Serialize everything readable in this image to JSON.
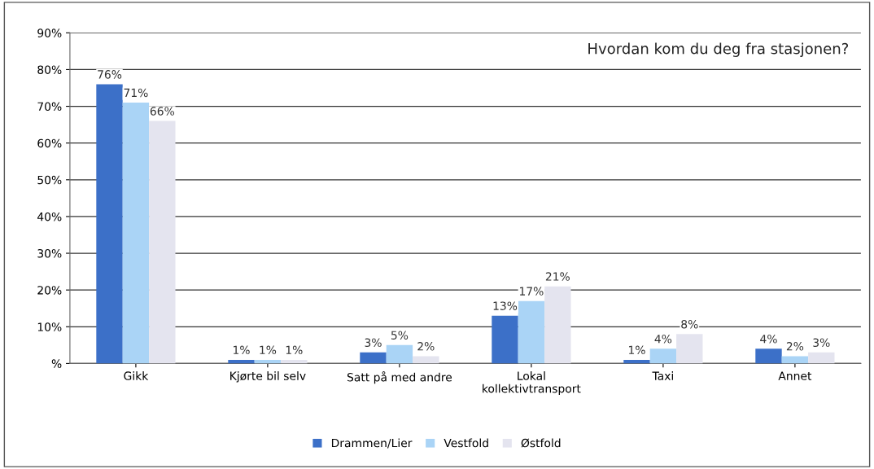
{
  "chart_data": {
    "type": "bar",
    "title": "Hvordan kom du deg fra stasjonen?",
    "categories": [
      "Gikk",
      "Kjørte bil selv",
      "Satt på med andre",
      "Lokal\nkollektivtransport",
      "Taxi",
      "Annet"
    ],
    "series": [
      {
        "name": "Drammen/Lier",
        "color": "#3c70c8",
        "values": [
          76,
          1,
          3,
          13,
          1,
          4
        ],
        "value_labels": [
          "76%",
          "1%",
          "3%",
          "13%",
          "1%",
          "4%"
        ]
      },
      {
        "name": "Vestfold",
        "color": "#aad4f6",
        "values": [
          71,
          1,
          5,
          17,
          4,
          2
        ],
        "value_labels": [
          "71%",
          "1%",
          "5%",
          "17%",
          "4%",
          "2%"
        ]
      },
      {
        "name": "Østfold",
        "color": "#e4e4ef",
        "values": [
          66,
          1,
          2,
          21,
          8,
          3
        ],
        "value_labels": [
          "66%",
          "1%",
          "2%",
          "21%",
          "8%",
          "3%"
        ]
      }
    ],
    "ylim": [
      0,
      90
    ],
    "yticks": [
      {
        "value": 0,
        "label": "%"
      },
      {
        "value": 10,
        "label": "10%"
      },
      {
        "value": 20,
        "label": "20%"
      },
      {
        "value": 30,
        "label": "30%"
      },
      {
        "value": 40,
        "label": "40%"
      },
      {
        "value": 50,
        "label": "50%"
      },
      {
        "value": 60,
        "label": "60%"
      },
      {
        "value": 70,
        "label": "70%"
      },
      {
        "value": 80,
        "label": "80%"
      },
      {
        "value": 90,
        "label": "90%"
      }
    ],
    "grid": "y",
    "legend": "bottom"
  }
}
